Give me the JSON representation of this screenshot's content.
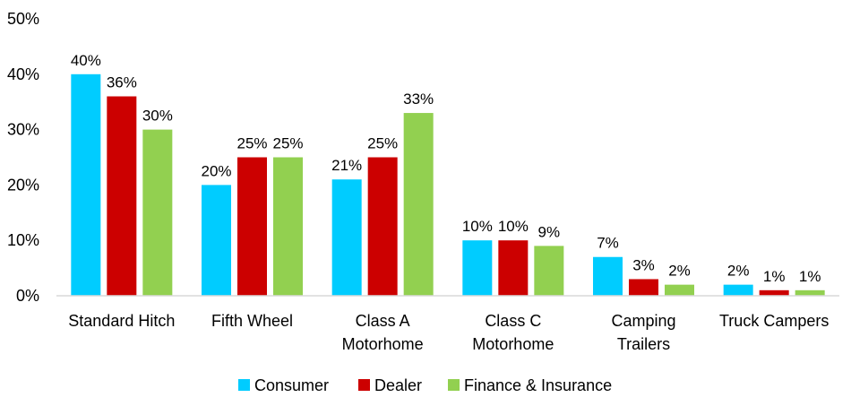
{
  "chart_data": {
    "type": "bar",
    "categories": [
      [
        "Standard Hitch"
      ],
      [
        "Fifth Wheel"
      ],
      [
        "Class A",
        "Motorhome"
      ],
      [
        "Class C",
        "Motorhome"
      ],
      [
        "Camping",
        "Trailers"
      ],
      [
        "Truck Campers"
      ]
    ],
    "series": [
      {
        "name": "Consumer",
        "color": "#00CCFF",
        "values": [
          40,
          20,
          21,
          10,
          7,
          2
        ]
      },
      {
        "name": "Dealer",
        "color": "#CC0000",
        "values": [
          36,
          25,
          25,
          10,
          3,
          1
        ]
      },
      {
        "name": "Finance & Insurance",
        "color": "#92D050",
        "values": [
          30,
          25,
          33,
          9,
          2,
          1
        ]
      }
    ],
    "data_labels": [
      [
        "40%",
        "20%",
        "21%",
        "10%",
        "7%",
        "2%"
      ],
      [
        "36%",
        "25%",
        "25%",
        "10%",
        "3%",
        "1%"
      ],
      [
        "30%",
        "25%",
        "33%",
        "9%",
        "2%",
        "1%"
      ]
    ],
    "y_ticks": [
      0,
      10,
      20,
      30,
      40,
      50
    ],
    "y_tick_labels": [
      "0%",
      "10%",
      "20%",
      "30%",
      "40%",
      "50%"
    ],
    "ylim": [
      0,
      50
    ],
    "title": "",
    "xlabel": "",
    "ylabel": "",
    "grid": false,
    "legend_position": "bottom"
  }
}
